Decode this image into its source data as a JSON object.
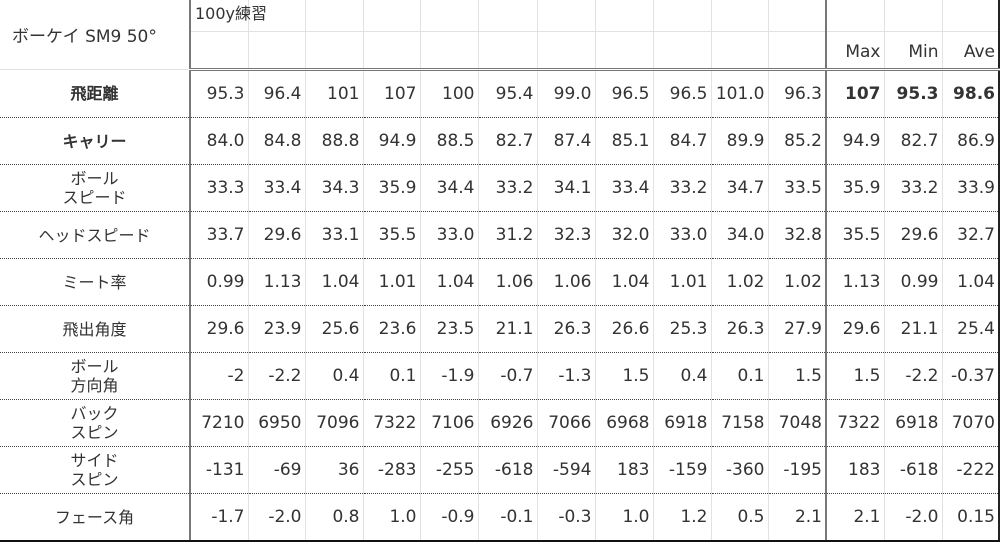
{
  "sheet": {
    "title": "ボーケイ SM9 50°",
    "subtitle": "100y練習",
    "stat_headers": [
      "Max",
      "Min",
      "Ave"
    ],
    "rows": [
      {
        "label": "飛距離",
        "bold": true,
        "values": [
          "95.3",
          "96.4",
          "101",
          "107",
          "100",
          "95.4",
          "99.0",
          "96.5",
          "96.5",
          "101.0",
          "96.3"
        ],
        "stats": [
          "107",
          "95.3",
          "98.6"
        ]
      },
      {
        "label": "キャリー",
        "bold": true,
        "values": [
          "84.0",
          "84.8",
          "88.8",
          "94.9",
          "88.5",
          "82.7",
          "87.4",
          "85.1",
          "84.7",
          "89.9",
          "85.2"
        ],
        "stats": [
          "94.9",
          "82.7",
          "86.9"
        ]
      },
      {
        "label": "ボール\nスピード",
        "values": [
          "33.3",
          "33.4",
          "34.3",
          "35.9",
          "34.4",
          "33.2",
          "34.1",
          "33.4",
          "33.2",
          "34.7",
          "33.5"
        ],
        "stats": [
          "35.9",
          "33.2",
          "33.9"
        ]
      },
      {
        "label": "ヘッドスピード",
        "values": [
          "33.7",
          "29.6",
          "33.1",
          "35.5",
          "33.0",
          "31.2",
          "32.3",
          "32.0",
          "33.0",
          "34.0",
          "32.8"
        ],
        "stats": [
          "35.5",
          "29.6",
          "32.7"
        ]
      },
      {
        "label": "ミート率",
        "values": [
          "0.99",
          "1.13",
          "1.04",
          "1.01",
          "1.04",
          "1.06",
          "1.06",
          "1.04",
          "1.01",
          "1.02",
          "1.02"
        ],
        "stats": [
          "1.13",
          "0.99",
          "1.04"
        ]
      },
      {
        "label": "飛出角度",
        "values": [
          "29.6",
          "23.9",
          "25.6",
          "23.6",
          "23.5",
          "21.1",
          "26.3",
          "26.6",
          "25.3",
          "26.3",
          "27.9"
        ],
        "stats": [
          "29.6",
          "21.1",
          "25.4"
        ]
      },
      {
        "label": "ボール\n方向角",
        "values": [
          "-2",
          "-2.2",
          "0.4",
          "0.1",
          "-1.9",
          "-0.7",
          "-1.3",
          "1.5",
          "0.4",
          "0.1",
          "1.5"
        ],
        "stats": [
          "1.5",
          "-2.2",
          "-0.37"
        ]
      },
      {
        "label": "バック\nスピン",
        "values": [
          "7210",
          "6950",
          "7096",
          "7322",
          "7106",
          "6926",
          "7066",
          "6968",
          "6918",
          "7158",
          "7048"
        ],
        "stats": [
          "7322",
          "6918",
          "7070"
        ]
      },
      {
        "label": "サイド\nスピン",
        "values": [
          "-131",
          "-69",
          "36",
          "-283",
          "-255",
          "-618",
          "-594",
          "183",
          "-159",
          "-360",
          "-195"
        ],
        "stats": [
          "183",
          "-618",
          "-222"
        ]
      },
      {
        "label": "フェース角",
        "values": [
          "-1.7",
          "-2.0",
          "0.8",
          "1.0",
          "-0.9",
          "-0.1",
          "-0.3",
          "1.0",
          "1.2",
          "0.5",
          "2.1"
        ],
        "stats": [
          "2.1",
          "-2.0",
          "0.15"
        ]
      }
    ]
  }
}
